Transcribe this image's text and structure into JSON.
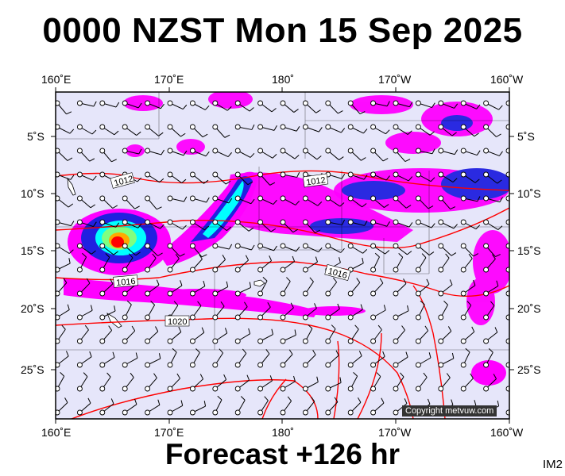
{
  "title": "0000 NZST Mon 15 Sep 2025",
  "footer": "Forecast +126 hr",
  "corner_label": "IM2",
  "copyright": "Copyright metvuw.com",
  "axes": {
    "top": [
      "160˚E",
      "170˚E",
      "180˚",
      "170˚W",
      "160˚W"
    ],
    "bottom": [
      "160˚E",
      "170˚E",
      "180˚",
      "170˚W",
      "160˚W"
    ],
    "left": [
      "5˚S",
      "10˚S",
      "15˚S",
      "20˚S",
      "25˚S"
    ],
    "right": [
      "5˚S",
      "10˚S",
      "15˚S",
      "20˚S",
      "25˚S"
    ]
  },
  "isobar_labels": [
    "1012",
    "1012",
    "1016",
    "1016",
    "1020"
  ],
  "colors": {
    "ocean": "#e6e6fa",
    "rain_light": "#ff00ff",
    "rain_moderate": "#2020e0",
    "rain_heavy": "#00ffff",
    "rain_intense": "#ff0000",
    "isobar": "#ff0000"
  }
}
